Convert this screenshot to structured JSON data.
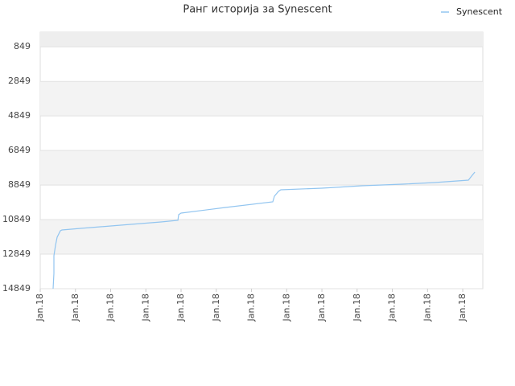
{
  "chart_data": {
    "type": "line",
    "title": "Ранг историја за Synescent",
    "x": [
      0.366,
      0.389,
      0.389,
      0.434,
      0.48,
      0.571,
      0.617,
      1.143,
      2.286,
      3.43,
      3.91,
      3.93,
      4.0,
      5.257,
      6.606,
      6.65,
      6.766,
      6.834,
      8.0,
      9.143,
      10.286,
      11.2,
      12.16,
      12.25,
      12.343
    ],
    "series": [
      {
        "name": "Synescent",
        "color": "#92c5f0",
        "values": [
          14849,
          13965,
          12941,
          12336,
          11870,
          11497,
          11451,
          11358,
          11172,
          10986,
          10892,
          10567,
          10474,
          10148,
          9822,
          9496,
          9217,
          9124,
          9031,
          8891,
          8798,
          8705,
          8565,
          8332,
          8099
        ]
      }
    ],
    "xlim": [
      0,
      12.57
    ],
    "xticks": [
      {
        "value": 0,
        "label": "Jan.18"
      },
      {
        "value": 1,
        "label": "Jan.18"
      },
      {
        "value": 2,
        "label": "Jan.18"
      },
      {
        "value": 3,
        "label": "Jan.18"
      },
      {
        "value": 4,
        "label": "Jan.18"
      },
      {
        "value": 5,
        "label": "Jan.18"
      },
      {
        "value": 6,
        "label": "Jan.18"
      },
      {
        "value": 7,
        "label": "Jan.18"
      },
      {
        "value": 8,
        "label": "Jan.18"
      },
      {
        "value": 9,
        "label": "Jan.18"
      },
      {
        "value": 10,
        "label": "Jan.18"
      },
      {
        "value": 11,
        "label": "Jan.18"
      },
      {
        "value": 12,
        "label": "Jan.18"
      }
    ],
    "ylim": [
      14849,
      0
    ],
    "yticks": [
      849,
      2849,
      4849,
      6849,
      8849,
      10849,
      12849,
      14849
    ],
    "grid": true,
    "legend": "top-right"
  }
}
